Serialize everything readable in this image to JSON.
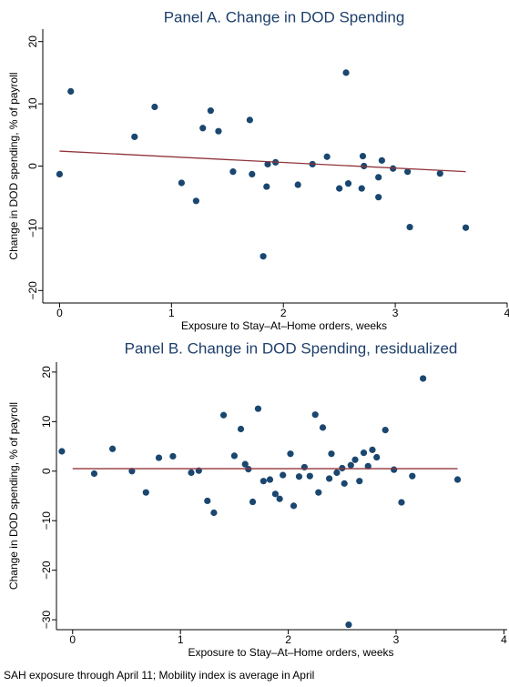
{
  "chart_data": [
    {
      "type": "scatter",
      "title": "Panel A. Change in DOD Spending",
      "x_label": "Exposure to Stay–At–Home orders, weeks",
      "y_label": "Change in DOD spending, % of payroll",
      "xlim": [
        -0.15,
        4
      ],
      "ylim": [
        -22,
        22
      ],
      "xticks": [
        0,
        1,
        2,
        3,
        4
      ],
      "yticks": [
        {
          "value": -20,
          "label": "−20"
        },
        {
          "value": -10,
          "label": "−10"
        },
        0,
        10,
        20
      ],
      "series": [
        {
          "type": "scatter",
          "color": "#1a476f",
          "x": [
            0,
            0.1,
            0.67,
            0.85,
            1.09,
            1.22,
            1.28,
            1.35,
            1.42,
            1.55,
            1.7,
            1.72,
            1.85,
            1.86,
            1.93,
            1.82,
            2.13,
            2.26,
            2.39,
            2.5,
            2.56,
            2.58,
            2.7,
            2.71,
            2.72,
            2.85,
            2.85,
            2.88,
            2.98,
            3.11,
            3.13,
            3.4,
            3.63
          ],
          "values": [
            -1.3,
            12,
            4.7,
            9.5,
            -2.7,
            -5.6,
            6.1,
            8.9,
            5.6,
            -0.9,
            7.4,
            -1.3,
            -3.3,
            0.3,
            0.6,
            -14.5,
            -3,
            0.3,
            1.5,
            -3.6,
            15,
            -2.8,
            -3.6,
            1.6,
            0,
            -1.8,
            -5,
            0.9,
            -0.4,
            -0.9,
            -9.8,
            -1.2,
            -9.9
          ]
        },
        {
          "type": "line",
          "color": "#90353b",
          "x": [
            0,
            3.63
          ],
          "values": [
            2.4,
            -0.9
          ]
        }
      ]
    },
    {
      "type": "scatter",
      "title": "Panel B. Change in DOD Spending, residualized",
      "x_label": "Exposure to Stay–At–Home orders, weeks",
      "y_label": "Change in DOD spending, % of payroll",
      "xlim": [
        -0.15,
        4.03
      ],
      "ylim": [
        -32,
        22
      ],
      "xticks": [
        0,
        1,
        2,
        3,
        4
      ],
      "yticks": [
        {
          "value": -30,
          "label": "−30"
        },
        {
          "value": -20,
          "label": "−20"
        },
        {
          "value": -10,
          "label": "−10"
        },
        0,
        10,
        20
      ],
      "series": [
        {
          "type": "scatter",
          "color": "#1a476f",
          "x": [
            -0.1,
            0.2,
            0.37,
            0.55,
            0.68,
            0.8,
            0.93,
            1.1,
            1.17,
            1.25,
            1.31,
            1.4,
            1.5,
            1.56,
            1.6,
            1.63,
            1.67,
            1.72,
            1.77,
            1.83,
            1.88,
            1.92,
            1.95,
            2.02,
            2.05,
            2.1,
            2.15,
            2.2,
            2.25,
            2.28,
            2.32,
            2.38,
            2.4,
            2.45,
            2.5,
            2.52,
            2.56,
            2.58,
            2.62,
            2.66,
            2.7,
            2.74,
            2.78,
            2.82,
            2.9,
            2.98,
            3.05,
            3.15,
            3.25,
            3.57
          ],
          "values": [
            4,
            -0.5,
            4.5,
            0,
            -4.3,
            2.7,
            3,
            -0.3,
            0.1,
            -6,
            -8.4,
            11.3,
            3.1,
            8.5,
            1.4,
            0.4,
            -6.2,
            12.6,
            -2,
            -1.7,
            -4.6,
            -5.6,
            -0.8,
            3.5,
            -7,
            -1.1,
            0.8,
            -1,
            11.4,
            -4.3,
            8.8,
            -1.5,
            3.5,
            -0.3,
            0.6,
            -2.5,
            -31,
            1.2,
            2.3,
            -2,
            3.7,
            1,
            4.3,
            2.8,
            8.3,
            0.3,
            -6.3,
            -1,
            18.7,
            -1.7
          ]
        },
        {
          "type": "line",
          "color": "#90353b",
          "x": [
            0,
            3.57
          ],
          "values": [
            0.5,
            0.5
          ]
        }
      ]
    }
  ],
  "footnote": "SAH exposure through April 11; Mobility index is average in April"
}
